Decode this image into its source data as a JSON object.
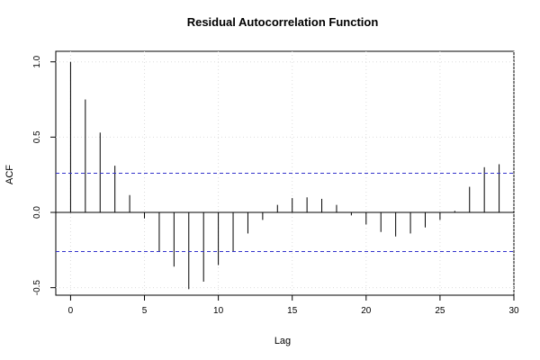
{
  "chart_data": {
    "type": "bar",
    "title": "Residual Autocorrelation Function",
    "xlabel": "Lag",
    "ylabel": "ACF",
    "xlim": [
      -1,
      30
    ],
    "ylim": [
      -0.55,
      1.07
    ],
    "x": [
      0,
      1,
      2,
      3,
      4,
      5,
      6,
      7,
      8,
      9,
      10,
      11,
      12,
      13,
      14,
      15,
      16,
      17,
      18,
      19,
      20,
      21,
      22,
      23,
      24,
      25,
      26,
      27,
      28,
      29
    ],
    "values": [
      1.0,
      0.75,
      0.53,
      0.31,
      0.115,
      -0.04,
      -0.26,
      -0.36,
      -0.51,
      -0.46,
      -0.35,
      -0.26,
      -0.14,
      -0.05,
      0.05,
      0.095,
      0.1,
      0.09,
      0.05,
      -0.02,
      -0.08,
      -0.13,
      -0.16,
      -0.14,
      -0.1,
      -0.05,
      0.01,
      0.17,
      0.3,
      0.32
    ],
    "confidence_band": [
      -0.26,
      0.26
    ],
    "xticks": [
      "0",
      "5",
      "10",
      "15",
      "20",
      "25",
      "30"
    ],
    "yticks": [
      "-0.5",
      "0.0",
      "0.5",
      "1.0"
    ],
    "grid": true,
    "colors": {
      "bars": "#000000",
      "band": "#3333cc",
      "grid": "#dddddd"
    }
  }
}
